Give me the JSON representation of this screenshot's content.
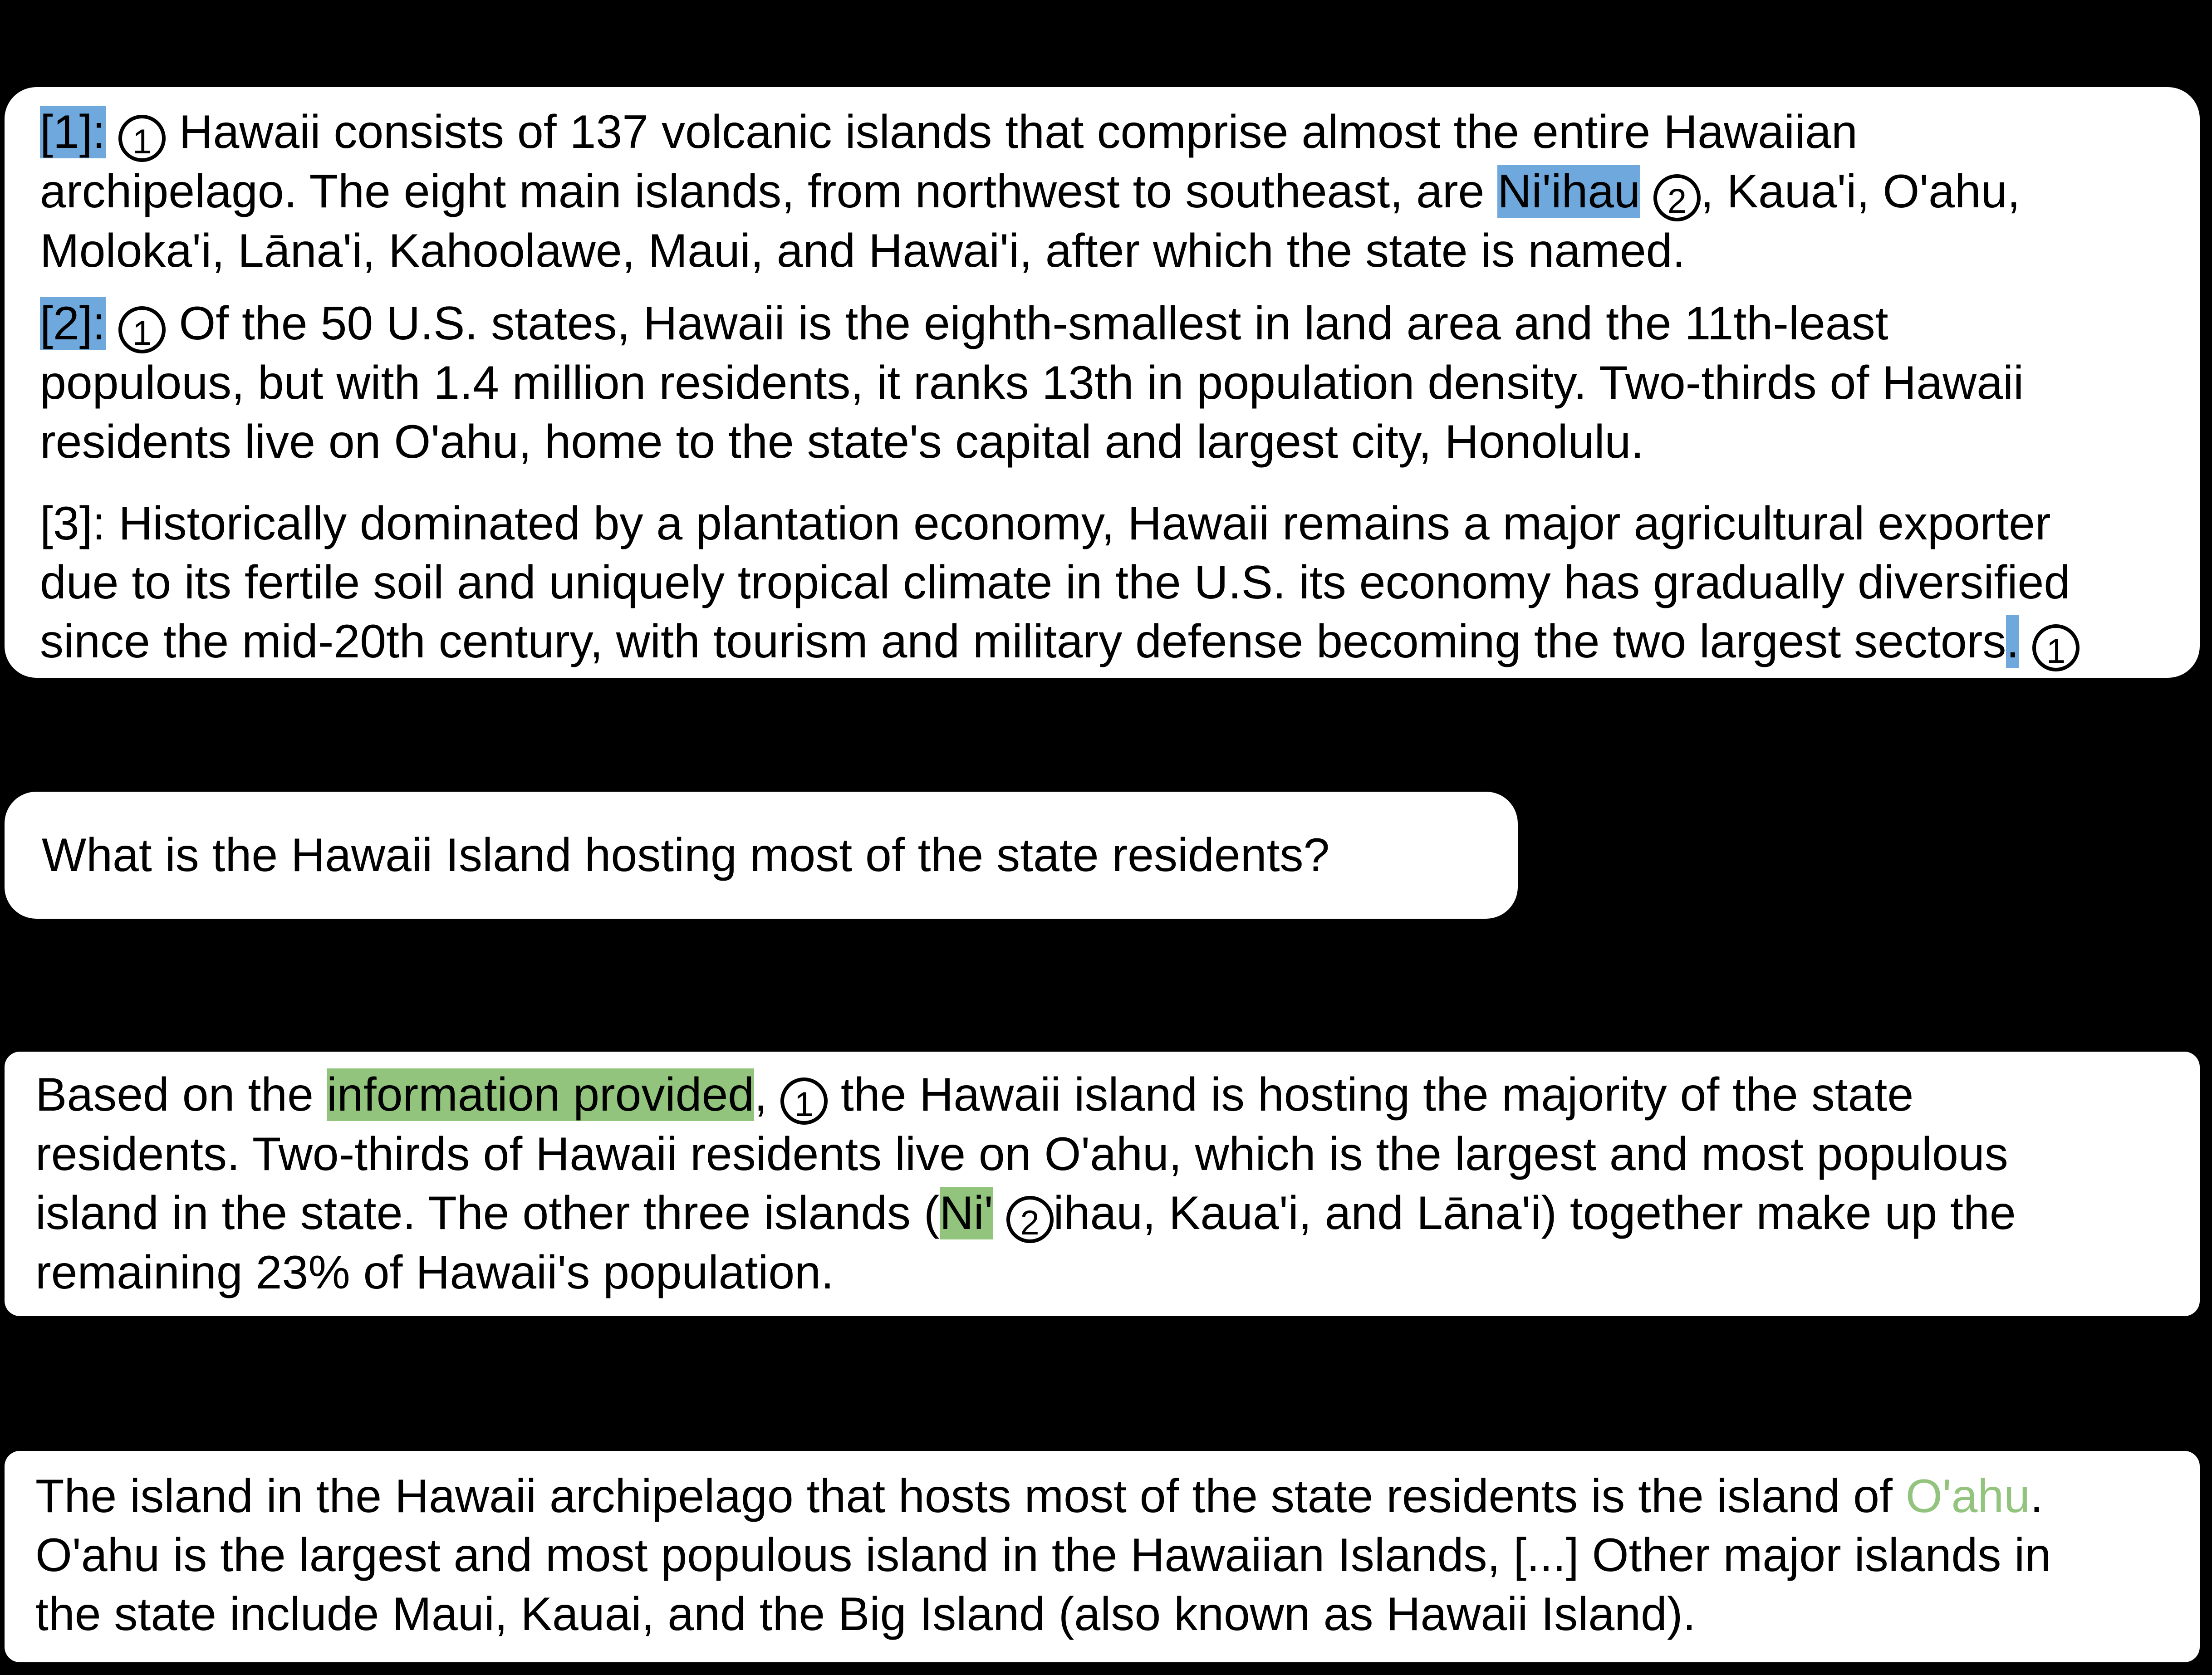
{
  "context": {
    "p1": {
      "tag": "[1]:",
      "marker1": "1",
      "line1_text": " Hawaii consists of 137 volcanic islands that comprise almost the entire Hawaiian",
      "line2_before": "archipelago. The eight main islands, from northwest to southeast, are ",
      "line2_highlight": "Ni'ihau",
      "marker2": "2",
      "line2_after": ", Kaua'i, O'ahu,",
      "line3": "Moloka'i, Lāna'i, Kahoolawe, Maui, and Hawai'i, after which the state is named."
    },
    "p2": {
      "tag": "[2]:",
      "marker1": "1",
      "line1_text": " Of the 50 U.S. states, Hawaii is the eighth-smallest in land area and the 11th-least",
      "line2": "populous, but with 1.4 million residents, it ranks 13th in population density. Two-thirds of Hawaii",
      "line3": "residents live on O'ahu, home to the state's capital and largest city, Honolulu."
    },
    "p3": {
      "line1": "[3]: Historically dominated by a plantation economy, Hawaii remains a major agricultural exporter",
      "line2": "due to its fertile soil and uniquely tropical climate in the U.S. its economy has gradually diversified",
      "line3_before": "since the mid-20th century, with tourism and military defense becoming the two largest sectors",
      "line3_highlight": ".",
      "marker1": "1"
    }
  },
  "question": {
    "text": "What is the Hawaii Island hosting most of the state residents?"
  },
  "response_a": {
    "line1_before": "Based on the ",
    "line1_highlight": "information provided",
    "line1_comma": ",",
    "marker1": "1",
    "line1_after": " the Hawaii island is hosting the majority of the state",
    "line2": "residents. Two-thirds of Hawaii residents live on O'ahu, which is the largest and most populous",
    "line3_before": "island in the state. The other three islands (",
    "line3_highlight": "Ni'",
    "marker2": "2",
    "line3_after": "ihau, Kaua'i, and Lāna'i) together make up the",
    "line4": "remaining 23% of Hawaii's population."
  },
  "response_b": {
    "line1_before": "The island in the Hawaii archipelago that hosts most of the state residents is the island of ",
    "line1_answer": "O'ahu",
    "line1_after": ".",
    "line2": "O'ahu is the largest and most populous island in the Hawaiian Islands, [...] Other major islands in",
    "line3": "the state include Maui, Kauai, and the Big Island (also known as Hawaii Island)."
  },
  "colors": {
    "background": "#000000",
    "box": "#ffffff",
    "highlight_blue": "#6fa8dc",
    "highlight_green": "#93c47d"
  }
}
